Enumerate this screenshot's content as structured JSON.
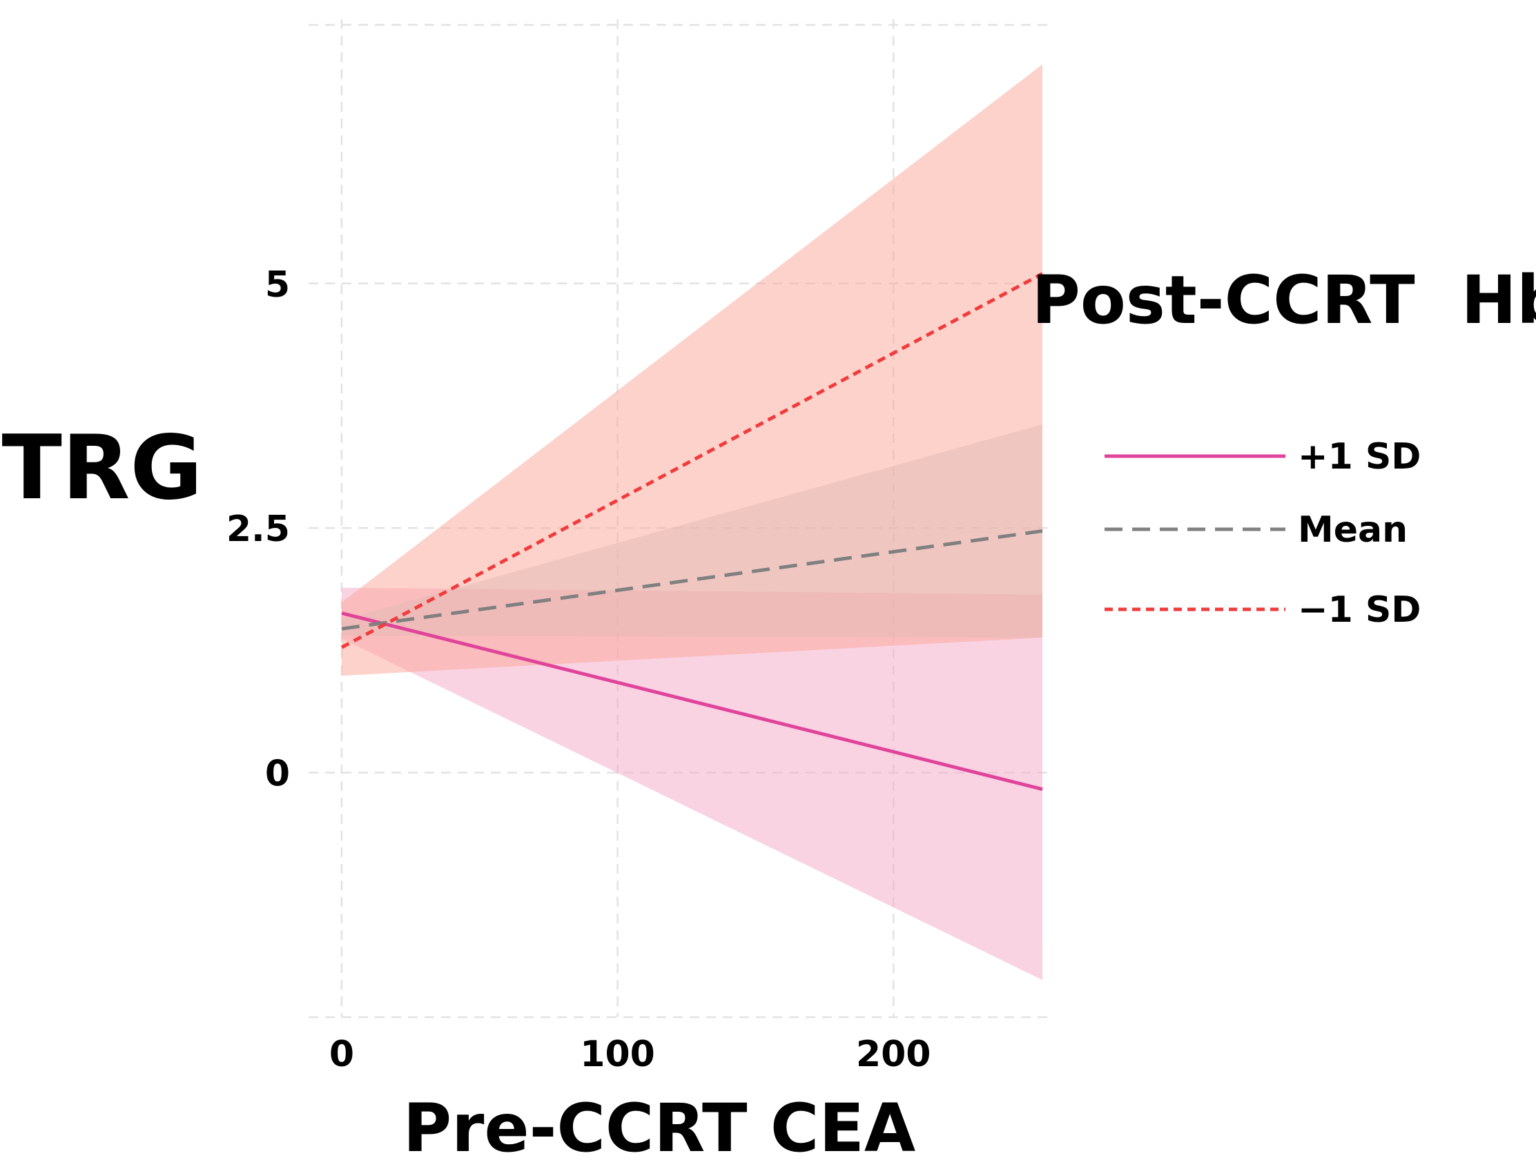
{
  "chart_data": {
    "type": "line",
    "title": "",
    "xlabel": "Pre-CCRT CEA",
    "ylabel": "TRG",
    "xlim": [
      -12,
      256
    ],
    "ylim": [
      -2.5,
      7.7
    ],
    "x_ticks": [
      {
        "value": 0,
        "label": "0"
      },
      {
        "value": 100,
        "label": "100"
      },
      {
        "value": 200,
        "label": "200"
      }
    ],
    "y_ticks": [
      {
        "value": 0,
        "label": "0"
      },
      {
        "value": 2.5,
        "label": "2.5"
      },
      {
        "value": 5,
        "label": "5"
      }
    ],
    "grid": true,
    "legend": {
      "title": "Post-CCRT  Hb",
      "position": "right"
    },
    "series": [
      {
        "name": "+1 SD",
        "style": "solid",
        "color": "#e0449a",
        "band_color": "#f5a8c8",
        "x": [
          0,
          254
        ],
        "y": [
          1.63,
          -0.17
        ],
        "lower": [
          1.37,
          -2.12
        ],
        "upper": [
          1.89,
          1.82
        ]
      },
      {
        "name": "Mean",
        "style": "dashed",
        "color": "#808080",
        "band_color": "#c8ced2",
        "x": [
          0,
          254
        ],
        "y": [
          1.47,
          2.47
        ],
        "lower": [
          1.4,
          1.38
        ],
        "upper": [
          1.56,
          3.56
        ]
      },
      {
        "name": "−1 SD",
        "style": "dotted",
        "color": "#f03c3c",
        "band_color": "#fca598",
        "x": [
          0,
          254
        ],
        "y": [
          1.28,
          5.1
        ],
        "lower": [
          0.99,
          1.38
        ],
        "upper": [
          1.74,
          7.24
        ]
      }
    ]
  }
}
